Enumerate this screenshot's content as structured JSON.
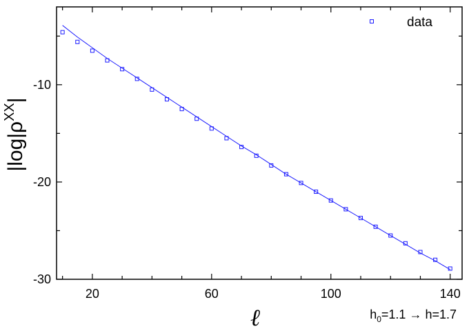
{
  "chart_data": {
    "type": "scatter",
    "xlabel": "ℓ",
    "ylabel": {
      "base": "|log|ρ",
      "sup": "XX",
      "close": "|"
    },
    "xlim": [
      8,
      144
    ],
    "ylim": [
      -30,
      -2
    ],
    "x_ticks": [
      20,
      60,
      100,
      140
    ],
    "y_ticks": [
      -10,
      -20,
      -30
    ],
    "grid": false,
    "legend": {
      "position": "top-right",
      "entries": [
        "data"
      ]
    },
    "annotation": {
      "pre": "h",
      "sub": "0",
      "post": "=1.1 → h=1.7"
    },
    "colors": {
      "series": "#1a1aff",
      "axes": "#000000"
    },
    "series": [
      {
        "name": "data",
        "kind": "markers",
        "marker": "square",
        "x": [
          10,
          15,
          20,
          25,
          30,
          35,
          40,
          45,
          50,
          55,
          60,
          65,
          70,
          75,
          80,
          85,
          90,
          95,
          100,
          105,
          110,
          115,
          120,
          125,
          130,
          135,
          140
        ],
        "y": [
          -4.6,
          -5.6,
          -6.5,
          -7.5,
          -8.4,
          -9.4,
          -10.5,
          -11.5,
          -12.5,
          -13.5,
          -14.5,
          -15.5,
          -16.4,
          -17.3,
          -18.3,
          -19.2,
          -20.1,
          -21.0,
          -21.9,
          -22.8,
          -23.7,
          -24.6,
          -25.5,
          -26.3,
          -27.2,
          -28.0,
          -28.9
        ]
      },
      {
        "name": "",
        "kind": "line",
        "x": [
          10,
          15,
          20,
          25,
          30,
          35,
          40,
          45,
          50,
          55,
          60,
          65,
          70,
          75,
          80,
          85,
          90,
          95,
          100,
          105,
          110,
          115,
          120,
          125,
          130,
          135,
          140
        ],
        "y": [
          -3.9,
          -5.1,
          -6.2,
          -7.3,
          -8.3,
          -9.3,
          -10.3,
          -11.3,
          -12.3,
          -13.3,
          -14.3,
          -15.3,
          -16.3,
          -17.2,
          -18.2,
          -19.2,
          -20.1,
          -21.0,
          -21.9,
          -22.8,
          -23.7,
          -24.6,
          -25.5,
          -26.4,
          -27.3,
          -28.1,
          -29.0
        ]
      }
    ]
  }
}
